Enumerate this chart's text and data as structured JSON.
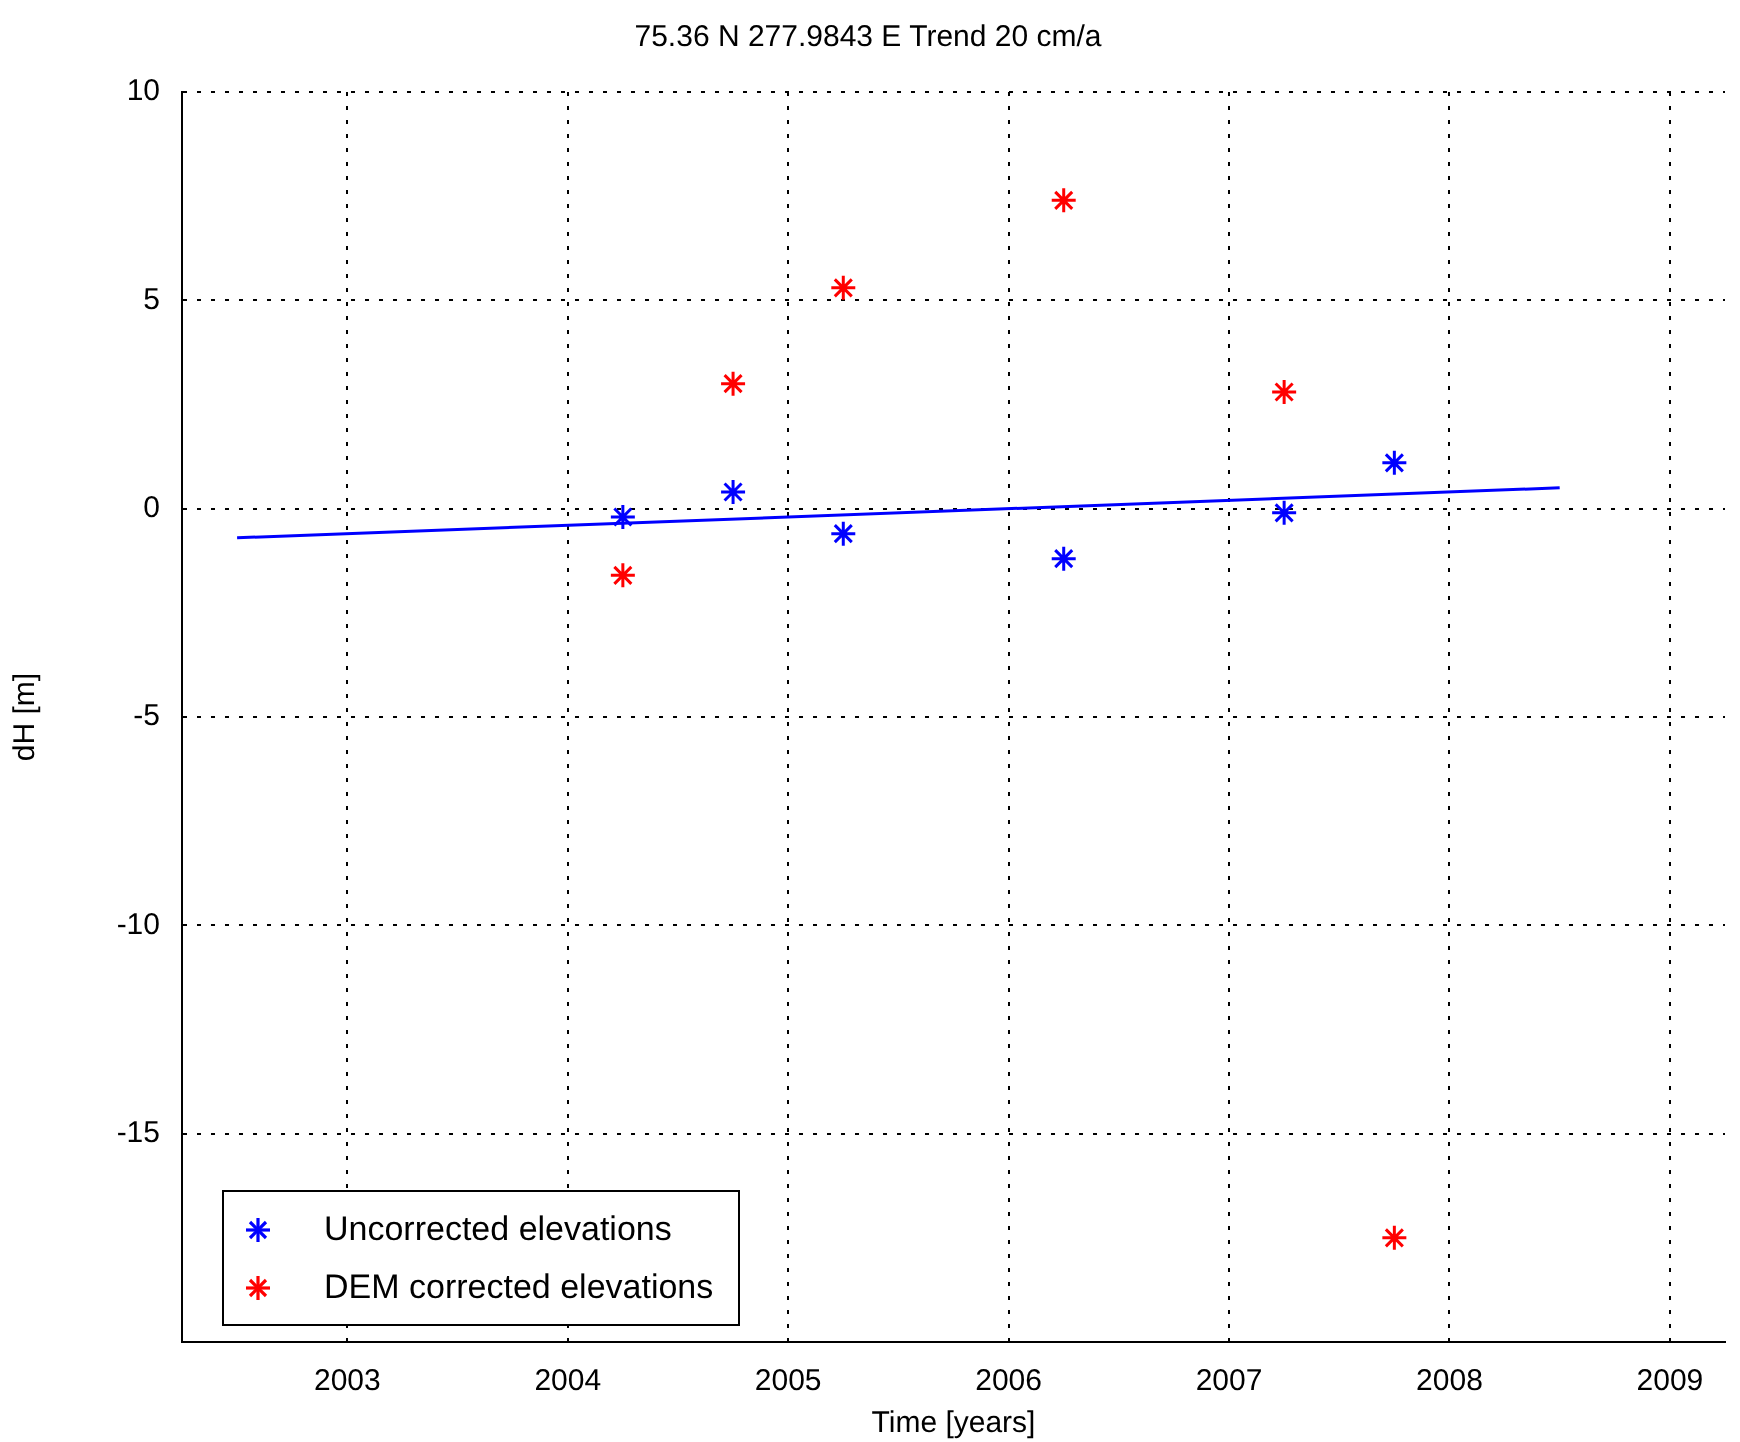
{
  "chart_data": {
    "type": "scatter",
    "title": "75.36 N 277.9843 E Trend 20 cm/a",
    "xlabel": "Time [years]",
    "ylabel": "dH [m]",
    "xlim": [
      2002.25,
      2009.25
    ],
    "xticks": [
      2003,
      2004,
      2005,
      2006,
      2007,
      2008,
      2009
    ],
    "ylim": [
      -20,
      10
    ],
    "yticks": [
      -15,
      -10,
      -5,
      0,
      5,
      10
    ],
    "grid": true,
    "legend": "bottom left",
    "marker": "cross",
    "series": [
      {
        "name": "Uncorrected elevations",
        "color": "#0000ff",
        "x": [
          2004.25,
          2004.75,
          2005.25,
          2006.25,
          2007.25,
          2007.75
        ],
        "values": [
          -0.2,
          0.4,
          -0.6,
          -1.2,
          -0.1,
          1.1
        ]
      },
      {
        "name": "DEM corrected elevations",
        "color": "#ff0000",
        "x": [
          2004.25,
          2004.75,
          2005.25,
          2006.25,
          2007.25,
          2007.75
        ],
        "values": [
          -1.6,
          3.0,
          5.3,
          7.4,
          2.8,
          -17.5
        ]
      },
      {
        "type": "line",
        "color": "#0000ff",
        "marker": "none",
        "x": [
          2002.5,
          2008.5
        ],
        "values": [
          -0.7,
          0.5
        ]
      }
    ]
  }
}
